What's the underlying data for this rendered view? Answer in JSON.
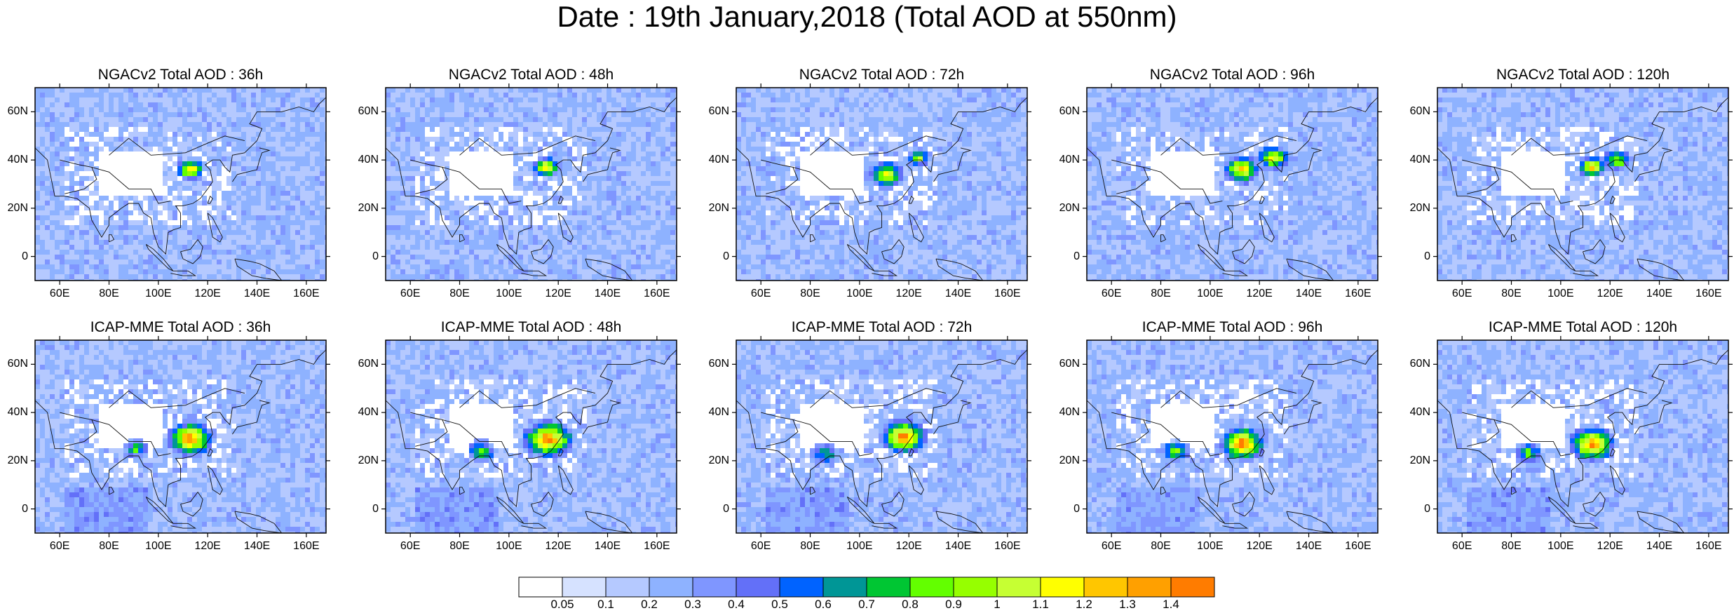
{
  "title": "Date : 19th January,2018 (Total AOD at 550nm)",
  "panels": [
    {
      "title": "NGACv2 Total AOD : 36h"
    },
    {
      "title": "NGACv2 Total AOD : 48h"
    },
    {
      "title": "NGACv2 Total AOD : 72h"
    },
    {
      "title": "NGACv2 Total AOD : 96h"
    },
    {
      "title": "NGACv2 Total AOD : 120h"
    },
    {
      "title": "ICAP-MME Total AOD : 36h"
    },
    {
      "title": "ICAP-MME Total AOD : 48h"
    },
    {
      "title": "ICAP-MME Total AOD : 72h"
    },
    {
      "title": "ICAP-MME Total AOD : 96h"
    },
    {
      "title": "ICAP-MME Total AOD : 120h"
    }
  ],
  "axes": {
    "lat_labels": [
      "60N",
      "40N",
      "20N",
      "0"
    ],
    "lon_labels": [
      "60E",
      "80E",
      "100E",
      "120E",
      "140E",
      "160E"
    ]
  },
  "colorbar": {
    "labels": [
      "0.05",
      "0.1",
      "0.2",
      "0.3",
      "0.4",
      "0.5",
      "0.6",
      "0.7",
      "0.8",
      "0.9",
      "1",
      "1.1",
      "1.2",
      "1.3",
      "1.4"
    ],
    "colors": [
      "#ffffff",
      "#d6e2ff",
      "#b5c9ff",
      "#8eb2ff",
      "#7f96ff",
      "#6370f8",
      "#0063ff",
      "#009696",
      "#00c633",
      "#63ff00",
      "#96ff00",
      "#c6ff33",
      "#ffff00",
      "#ffc600",
      "#ffa000",
      "#ff7c00",
      "#ff1900"
    ]
  }
}
